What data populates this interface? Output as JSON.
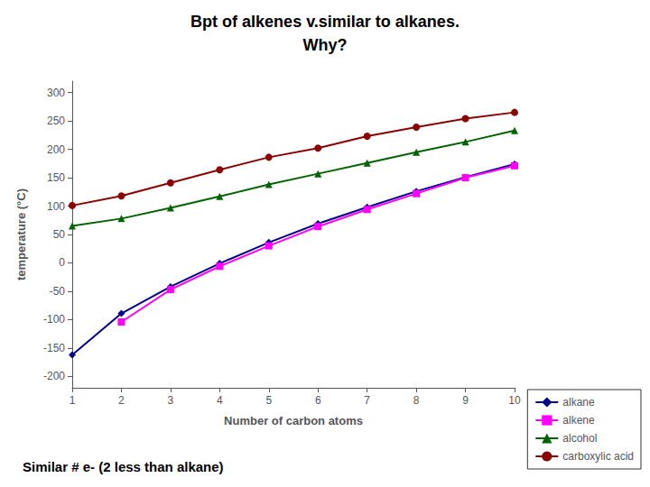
{
  "chart_data": {
    "type": "line",
    "title": "Bpt of alkenes v.similar to alkanes.",
    "subtitle": "Why?",
    "xlabel": "Number of carbon atoms",
    "ylabel": "temperature (°C)",
    "annotation": "Similar # e- (2 less than alkane)",
    "xlim": [
      1,
      10
    ],
    "ylim": [
      -220,
      320
    ],
    "xticks": [
      1,
      2,
      3,
      4,
      5,
      6,
      7,
      8,
      9,
      10
    ],
    "yticks": [
      -200,
      -150,
      -100,
      -50,
      0,
      50,
      100,
      150,
      200,
      250,
      300
    ],
    "grid": false,
    "legend": "lower right",
    "series": [
      {
        "name": "alkane",
        "color": "#00008B",
        "marker": "diamond",
        "x": [
          1,
          2,
          3,
          4,
          5,
          6,
          7,
          8,
          9,
          10
        ],
        "values": [
          -162,
          -89,
          -42,
          -1,
          36,
          69,
          98,
          126,
          151,
          174
        ]
      },
      {
        "name": "alkene",
        "color": "#FF00FF",
        "marker": "square",
        "x": [
          2,
          3,
          4,
          5,
          6,
          7,
          8,
          9,
          10
        ],
        "values": [
          -104,
          -47,
          -6,
          30,
          64,
          94,
          122,
          150,
          171
        ]
      },
      {
        "name": "alcohol",
        "color": "#006400",
        "marker": "triangle",
        "x": [
          1,
          2,
          3,
          4,
          5,
          6,
          7,
          8,
          9,
          10
        ],
        "values": [
          65,
          78,
          97,
          117,
          138,
          157,
          176,
          195,
          213,
          233
        ]
      },
      {
        "name": "carboxylic acid",
        "color": "#8B0000",
        "marker": "circle",
        "x": [
          1,
          2,
          3,
          4,
          5,
          6,
          7,
          8,
          9,
          10
        ],
        "values": [
          101,
          118,
          141,
          164,
          186,
          202,
          223,
          239,
          254,
          265
        ]
      }
    ]
  }
}
